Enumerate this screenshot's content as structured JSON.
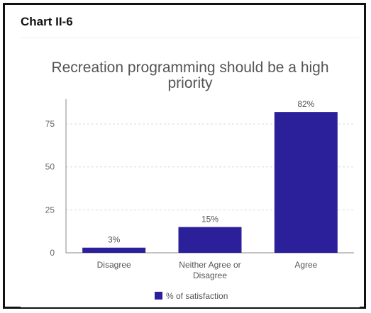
{
  "header": {
    "label": "Chart II-6"
  },
  "chart_data": {
    "type": "bar",
    "title_lines": [
      "Recreation programming should be a high",
      "priority"
    ],
    "categories": [
      [
        "Disagree"
      ],
      [
        "Neither Agree or",
        "Disagree"
      ],
      [
        "Agree"
      ]
    ],
    "values": [
      3,
      15,
      82
    ],
    "data_labels": [
      "3%",
      "15%",
      "82%"
    ],
    "yticks": [
      0,
      25,
      50,
      75
    ],
    "ylim": [
      0,
      87
    ],
    "grid": true,
    "legend": {
      "position": "bottom",
      "label": "% of satisfaction"
    },
    "colors": {
      "bar": "#2c1f9a",
      "grid": "#d9d9d9",
      "axis": "#666666"
    }
  }
}
